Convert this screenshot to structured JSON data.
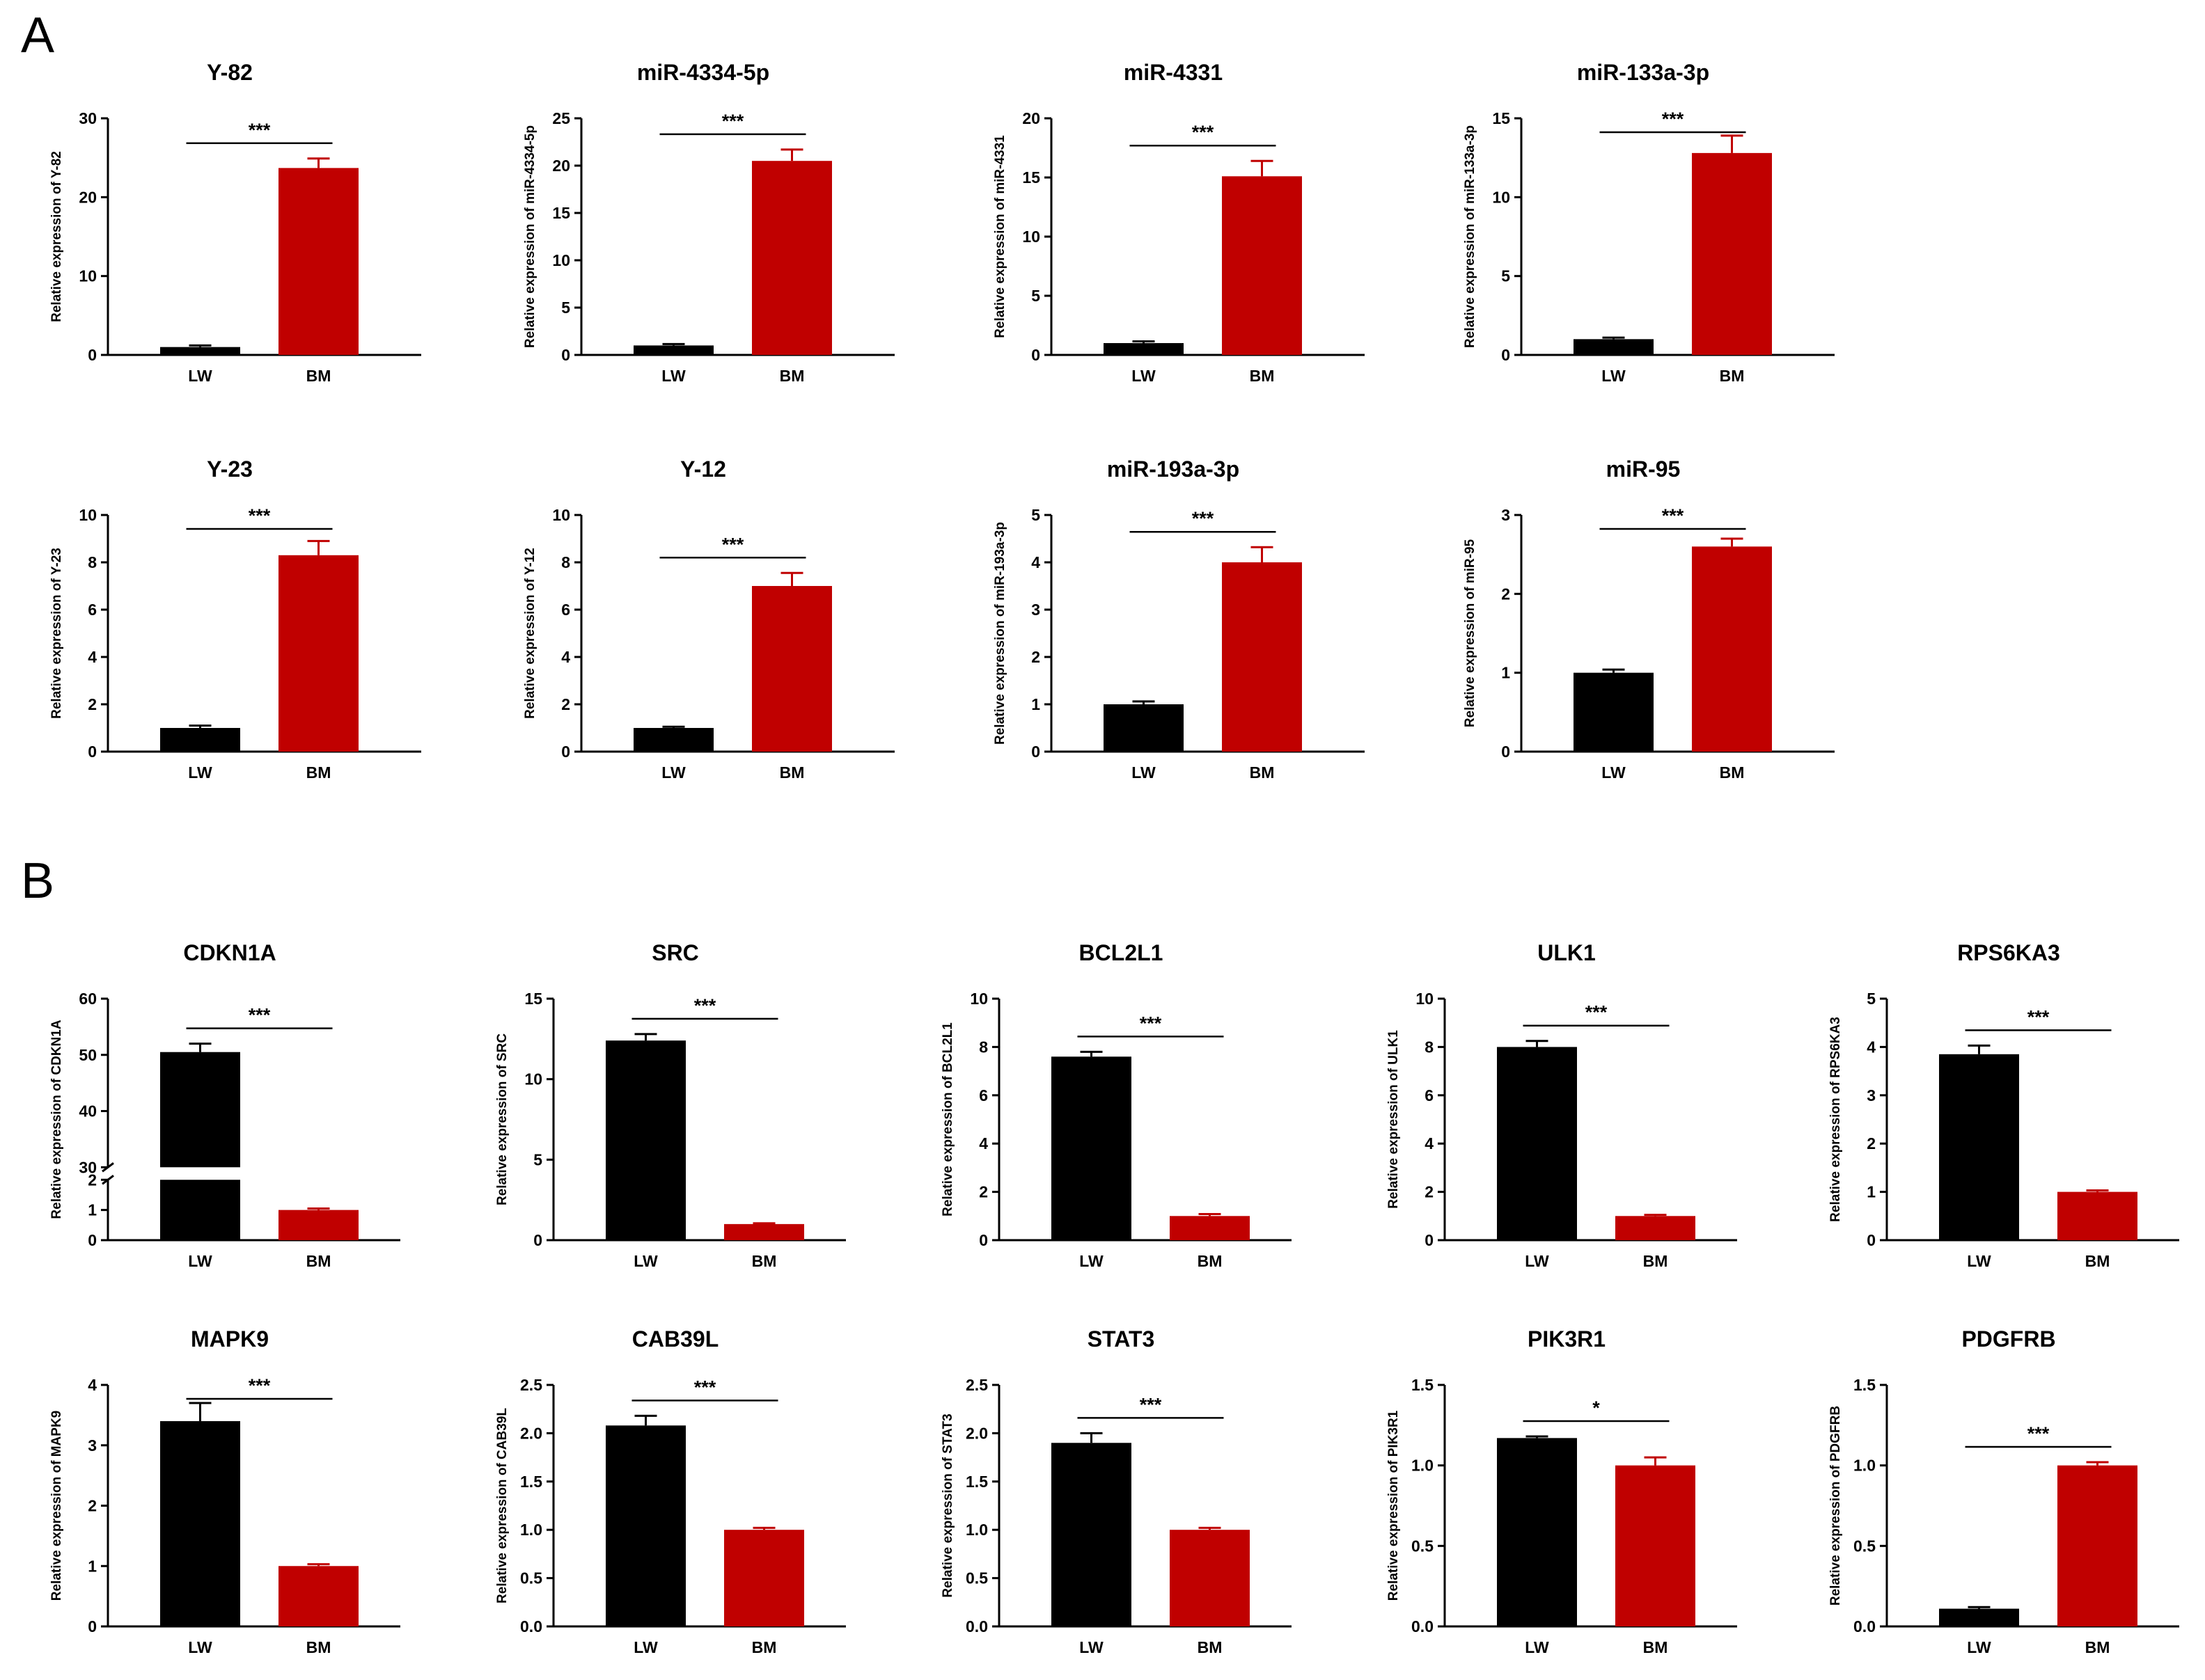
{
  "panels": {
    "a": "A",
    "b": "B"
  },
  "colors": {
    "lw": "#000000",
    "bm": "#c00000",
    "axis": "#000000"
  },
  "chart_data": [
    {
      "type": "bar",
      "panel": "A",
      "title": "Y-82",
      "categories": [
        "LW",
        "BM"
      ],
      "values": [
        1.0,
        23.7
      ],
      "errors": [
        0.2,
        1.2
      ],
      "ylim": [
        0,
        30
      ],
      "yticks": [
        0,
        10,
        20,
        30
      ],
      "ylabel": "Relative expression of Y-82",
      "significance": "***"
    },
    {
      "type": "bar",
      "panel": "A",
      "title": "miR-4334-5p",
      "categories": [
        "LW",
        "BM"
      ],
      "values": [
        1.0,
        20.5
      ],
      "errors": [
        0.15,
        1.2
      ],
      "ylim": [
        0,
        25
      ],
      "yticks": [
        0,
        5,
        10,
        15,
        20,
        25
      ],
      "ylabel": "Relative expression of miR-4334-5p",
      "significance": "***"
    },
    {
      "type": "bar",
      "panel": "A",
      "title": "miR-4331",
      "categories": [
        "LW",
        "BM"
      ],
      "values": [
        1.0,
        15.1
      ],
      "errors": [
        0.15,
        1.3
      ],
      "ylim": [
        0,
        20
      ],
      "yticks": [
        0,
        5,
        10,
        15,
        20
      ],
      "ylabel": "Relative expression of miR-4331",
      "significance": "***"
    },
    {
      "type": "bar",
      "panel": "A",
      "title": "miR-133a-3p",
      "categories": [
        "LW",
        "BM"
      ],
      "values": [
        1.0,
        12.8
      ],
      "errors": [
        0.1,
        1.1
      ],
      "ylim": [
        0,
        15
      ],
      "yticks": [
        0,
        5,
        10,
        15
      ],
      "ylabel": "Relative expression of miR-133a-3p",
      "significance": "***"
    },
    {
      "type": "bar",
      "panel": "A",
      "title": "Y-23",
      "categories": [
        "LW",
        "BM"
      ],
      "values": [
        1.0,
        8.3
      ],
      "errors": [
        0.1,
        0.6
      ],
      "ylim": [
        0,
        10
      ],
      "yticks": [
        0,
        2,
        4,
        6,
        8,
        10
      ],
      "ylabel": "Relative expression of Y-23",
      "significance": "***"
    },
    {
      "type": "bar",
      "panel": "A",
      "title": "Y-12",
      "categories": [
        "LW",
        "BM"
      ],
      "values": [
        1.0,
        7.0
      ],
      "errors": [
        0.05,
        0.55
      ],
      "ylim": [
        0,
        10
      ],
      "yticks": [
        0,
        2,
        4,
        6,
        8,
        10
      ],
      "ylabel": "Relative expression of Y-12",
      "significance": "***"
    },
    {
      "type": "bar",
      "panel": "A",
      "title": "miR-193a-3p",
      "categories": [
        "LW",
        "BM"
      ],
      "values": [
        1.0,
        4.0
      ],
      "errors": [
        0.06,
        0.32
      ],
      "ylim": [
        0,
        5
      ],
      "yticks": [
        0,
        1,
        2,
        3,
        4,
        5
      ],
      "ylabel": "Relative expression of miR-193a-3p",
      "significance": "***"
    },
    {
      "type": "bar",
      "panel": "A",
      "title": "miR-95",
      "categories": [
        "LW",
        "BM"
      ],
      "values": [
        1.0,
        2.6
      ],
      "errors": [
        0.04,
        0.1
      ],
      "ylim": [
        0,
        3
      ],
      "yticks": [
        0,
        1,
        2,
        3
      ],
      "ylabel": "Relative expression of miR-95",
      "significance": "***"
    },
    {
      "type": "bar",
      "panel": "B",
      "title": "CDKN1A",
      "categories": [
        "LW",
        "BM"
      ],
      "values": [
        50.5,
        1.0
      ],
      "errors": [
        1.5,
        0.05
      ],
      "ylim": [
        0,
        60
      ],
      "ybreak": [
        2,
        30
      ],
      "yticks": [
        0,
        1,
        2,
        30,
        40,
        50,
        60
      ],
      "ylabel": "Relative expression of CDKN1A",
      "significance": "***"
    },
    {
      "type": "bar",
      "panel": "B",
      "title": "SRC",
      "categories": [
        "LW",
        "BM"
      ],
      "values": [
        12.4,
        1.0
      ],
      "errors": [
        0.4,
        0.05
      ],
      "ylim": [
        0,
        15
      ],
      "yticks": [
        0,
        5,
        10,
        15
      ],
      "ylabel": "Relative expression of SRC",
      "significance": "***"
    },
    {
      "type": "bar",
      "panel": "B",
      "title": "BCL2L1",
      "categories": [
        "LW",
        "BM"
      ],
      "values": [
        7.6,
        1.0
      ],
      "errors": [
        0.2,
        0.08
      ],
      "ylim": [
        0,
        10
      ],
      "yticks": [
        0,
        2,
        4,
        6,
        8,
        10
      ],
      "ylabel": "Relative expression of BCL2L1",
      "significance": "***"
    },
    {
      "type": "bar",
      "panel": "B",
      "title": "ULK1",
      "categories": [
        "LW",
        "BM"
      ],
      "values": [
        8.0,
        1.0
      ],
      "errors": [
        0.25,
        0.05
      ],
      "ylim": [
        0,
        10
      ],
      "yticks": [
        0,
        2,
        4,
        6,
        8,
        10
      ],
      "ylabel": "Relative expression of ULK1",
      "significance": "***"
    },
    {
      "type": "bar",
      "panel": "B",
      "title": "RPS6KA3",
      "categories": [
        "LW",
        "BM"
      ],
      "values": [
        3.85,
        1.0
      ],
      "errors": [
        0.18,
        0.03
      ],
      "ylim": [
        0,
        5
      ],
      "yticks": [
        0,
        1,
        2,
        3,
        4,
        5
      ],
      "ylabel": "Relative expression of RPS6KA3",
      "significance": "***"
    },
    {
      "type": "bar",
      "panel": "B",
      "title": "MAPK9",
      "categories": [
        "LW",
        "BM"
      ],
      "values": [
        3.4,
        1.0
      ],
      "errors": [
        0.3,
        0.03
      ],
      "ylim": [
        0,
        4
      ],
      "yticks": [
        0,
        1,
        2,
        3,
        4
      ],
      "ylabel": "Relative expression of MAPK9",
      "significance": "***"
    },
    {
      "type": "bar",
      "panel": "B",
      "title": "CAB39L",
      "categories": [
        "LW",
        "BM"
      ],
      "values": [
        2.08,
        1.0
      ],
      "errors": [
        0.1,
        0.02
      ],
      "ylim": [
        0,
        2.5
      ],
      "yticks": [
        "0.0",
        "0.5",
        "1.0",
        "1.5",
        "2.0",
        "2.5"
      ],
      "ylabel": "Relative expression of CAB39L",
      "significance": "***"
    },
    {
      "type": "bar",
      "panel": "B",
      "title": "STAT3",
      "categories": [
        "LW",
        "BM"
      ],
      "values": [
        1.9,
        1.0
      ],
      "errors": [
        0.1,
        0.02
      ],
      "ylim": [
        0,
        2.5
      ],
      "yticks": [
        "0.0",
        "0.5",
        "1.0",
        "1.5",
        "2.0",
        "2.5"
      ],
      "ylabel": "Relative expression of STAT3",
      "significance": "***"
    },
    {
      "type": "bar",
      "panel": "B",
      "title": "PIK3R1",
      "categories": [
        "LW",
        "BM"
      ],
      "values": [
        1.17,
        1.0
      ],
      "errors": [
        0.01,
        0.05
      ],
      "ylim": [
        0,
        1.5
      ],
      "yticks": [
        "0.0",
        "0.5",
        "1.0",
        "1.5"
      ],
      "ylabel": "Relative expression of PIK3R1",
      "significance": "*"
    },
    {
      "type": "bar",
      "panel": "B",
      "title": "PDGFRB",
      "categories": [
        "LW",
        "BM"
      ],
      "values": [
        0.11,
        1.0
      ],
      "errors": [
        0.01,
        0.02
      ],
      "ylim": [
        0,
        1.5
      ],
      "yticks": [
        "0.0",
        "0.5",
        "1.0",
        "1.5"
      ],
      "ylabel": "Relative expression of PDGFRB",
      "significance": "***"
    }
  ]
}
